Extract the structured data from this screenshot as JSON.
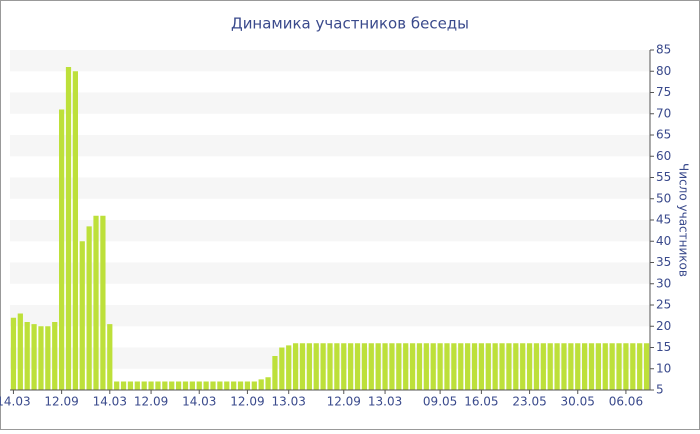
{
  "chart_data": {
    "type": "bar",
    "title": "Динамика участников беседы",
    "y_axis_label": "Число участников",
    "categories": [
      "14.03",
      null,
      null,
      null,
      null,
      null,
      null,
      "12.09",
      null,
      null,
      null,
      null,
      null,
      null,
      "14.03",
      null,
      null,
      null,
      null,
      null,
      "12.09",
      null,
      null,
      null,
      null,
      null,
      null,
      "14.03",
      null,
      null,
      null,
      null,
      null,
      null,
      "12.09",
      null,
      null,
      null,
      null,
      null,
      "13.03",
      null,
      null,
      null,
      null,
      null,
      null,
      null,
      "12.09",
      null,
      null,
      null,
      null,
      null,
      "13.03",
      null,
      null,
      null,
      null,
      null,
      null,
      null,
      "09.05",
      null,
      null,
      null,
      null,
      null,
      "16.05",
      null,
      null,
      null,
      null,
      null,
      null,
      "23.05",
      null,
      null,
      null,
      null,
      null,
      null,
      "30.05",
      null,
      null,
      null,
      null,
      null,
      null,
      "06.06",
      null,
      null,
      null
    ],
    "values": [
      22,
      23,
      21,
      20.5,
      20,
      20,
      21,
      71,
      81,
      80,
      40,
      43.5,
      46,
      46,
      20.5,
      7,
      7,
      7,
      7,
      7,
      7,
      7,
      7,
      7,
      7,
      7,
      7,
      7,
      7,
      7,
      7,
      7,
      7,
      7,
      7,
      7,
      7.5,
      8,
      13,
      15,
      15.5,
      16,
      16,
      16,
      16,
      16,
      16,
      16,
      16,
      16,
      16,
      16,
      16,
      16,
      16,
      16,
      16,
      16,
      16,
      16,
      16,
      16,
      16,
      16,
      16,
      16,
      16,
      16,
      16,
      16,
      16,
      16,
      16,
      16,
      16,
      16,
      16,
      16,
      16,
      16,
      16,
      16,
      16,
      16,
      16,
      16,
      16,
      16,
      16,
      16,
      16,
      16,
      16
    ],
    "color": "#bde03a",
    "ylim": [
      5,
      85
    ],
    "yticks": [
      5,
      10,
      15,
      20,
      25,
      30,
      35,
      40,
      45,
      50,
      55,
      60,
      65,
      70,
      75,
      80,
      85
    ],
    "grid": true
  }
}
